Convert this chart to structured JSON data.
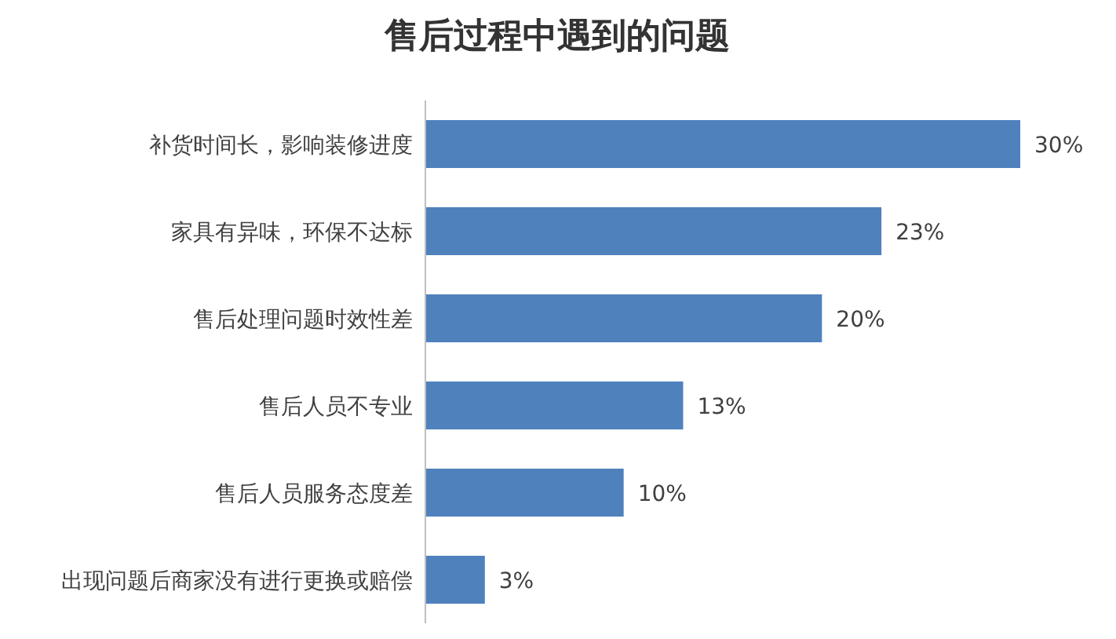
{
  "chart_data": {
    "type": "bar",
    "orientation": "horizontal",
    "title": "售后过程中遇到的问题",
    "categories": [
      "补货时间长，影响装修进度",
      "家具有异味，环保不达标",
      "售后处理问题时效性差",
      "售后人员不专业",
      "售后人员服务态度差",
      "出现问题后商家没有进行更换或赔偿"
    ],
    "values": [
      30,
      23,
      20,
      13,
      10,
      3
    ],
    "value_labels": [
      "30%",
      "23%",
      "20%",
      "13%",
      "10%",
      "3%"
    ],
    "color": "#4f81bd"
  }
}
